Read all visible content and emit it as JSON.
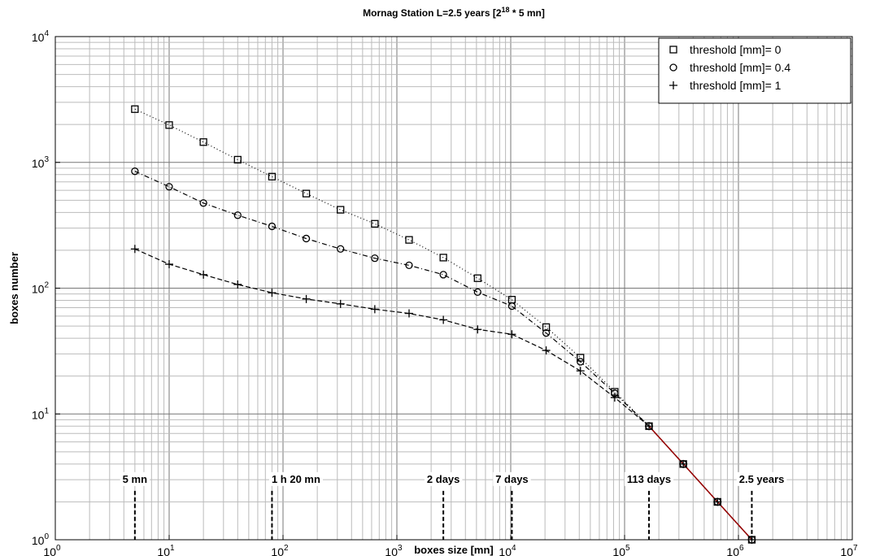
{
  "chart_data": {
    "type": "line",
    "title": "Mornag Station L=2.5 years [2^18 * 5 mn]",
    "title_parts": [
      "Mornag Station L=2.5 years [2",
      "18",
      " * 5 mn]"
    ],
    "xlabel": "boxes size [mn]",
    "ylabel": "boxes number",
    "x_scale": "log",
    "y_scale": "log",
    "xlim": [
      1,
      10000000
    ],
    "ylim": [
      1,
      10000
    ],
    "grid": true,
    "legend_position": "top-right",
    "x_ticks": [
      {
        "value": 1,
        "base": "10",
        "exp": "0"
      },
      {
        "value": 10,
        "base": "10",
        "exp": "1"
      },
      {
        "value": 100,
        "base": "10",
        "exp": "2"
      },
      {
        "value": 1000,
        "base": "10",
        "exp": "3"
      },
      {
        "value": 10000,
        "base": "10",
        "exp": "4"
      },
      {
        "value": 100000,
        "base": "10",
        "exp": "5"
      },
      {
        "value": 1000000,
        "base": "10",
        "exp": "6"
      },
      {
        "value": 10000000,
        "base": "10",
        "exp": "7"
      }
    ],
    "y_ticks": [
      {
        "value": 1,
        "base": "10",
        "exp": "0"
      },
      {
        "value": 10,
        "base": "10",
        "exp": "1"
      },
      {
        "value": 100,
        "base": "10",
        "exp": "2"
      },
      {
        "value": 1000,
        "base": "10",
        "exp": "3"
      },
      {
        "value": 10000,
        "base": "10",
        "exp": "4"
      }
    ],
    "x": [
      5,
      10,
      20,
      40,
      80,
      160,
      320,
      640,
      1280,
      2560,
      5120,
      10240,
      20480,
      40960,
      81920,
      163840,
      327680,
      655360,
      1310720
    ],
    "series": [
      {
        "name": "threshold [mm]= 0",
        "marker": "square",
        "dash": "1,3",
        "values": [
          2650,
          1980,
          1450,
          1050,
          770,
          565,
          420,
          325,
          242,
          175,
          120,
          81,
          49,
          28,
          15,
          8,
          4,
          2,
          1
        ]
      },
      {
        "name": "threshold [mm]= 0.4",
        "marker": "circle",
        "dash": "6,3,1,3",
        "values": [
          850,
          640,
          475,
          380,
          310,
          248,
          205,
          173,
          152,
          128,
          93,
          72,
          44,
          26,
          14.6,
          8,
          4,
          2,
          1
        ]
      },
      {
        "name": "threshold [mm]= 1",
        "marker": "plus",
        "dash": "6,3",
        "values": [
          205,
          155,
          128,
          107,
          92,
          82,
          75,
          68,
          63,
          56,
          47,
          43,
          32,
          22,
          13.5,
          8,
          4,
          2,
          1
        ]
      }
    ],
    "highlight_segment": {
      "x": [
        163840,
        327680,
        655360,
        1310720
      ],
      "values": [
        8,
        4,
        2,
        1
      ],
      "color": "#990000"
    },
    "annotations": [
      {
        "label": "5 mn",
        "x": 5,
        "label_x": 5
      },
      {
        "label": "1 h 20 mn",
        "x": 80,
        "label_x": 130
      },
      {
        "label": "2 days",
        "x": 2560,
        "label_x": 2560
      },
      {
        "label": "7 days",
        "x": 10240,
        "label_x": 10240
      },
      {
        "label": "113 days",
        "x": 163840,
        "label_x": 163840
      },
      {
        "label": "2.5 years",
        "x": 1310720,
        "label_x": 1600000
      }
    ],
    "annotation_level": 3.2
  }
}
